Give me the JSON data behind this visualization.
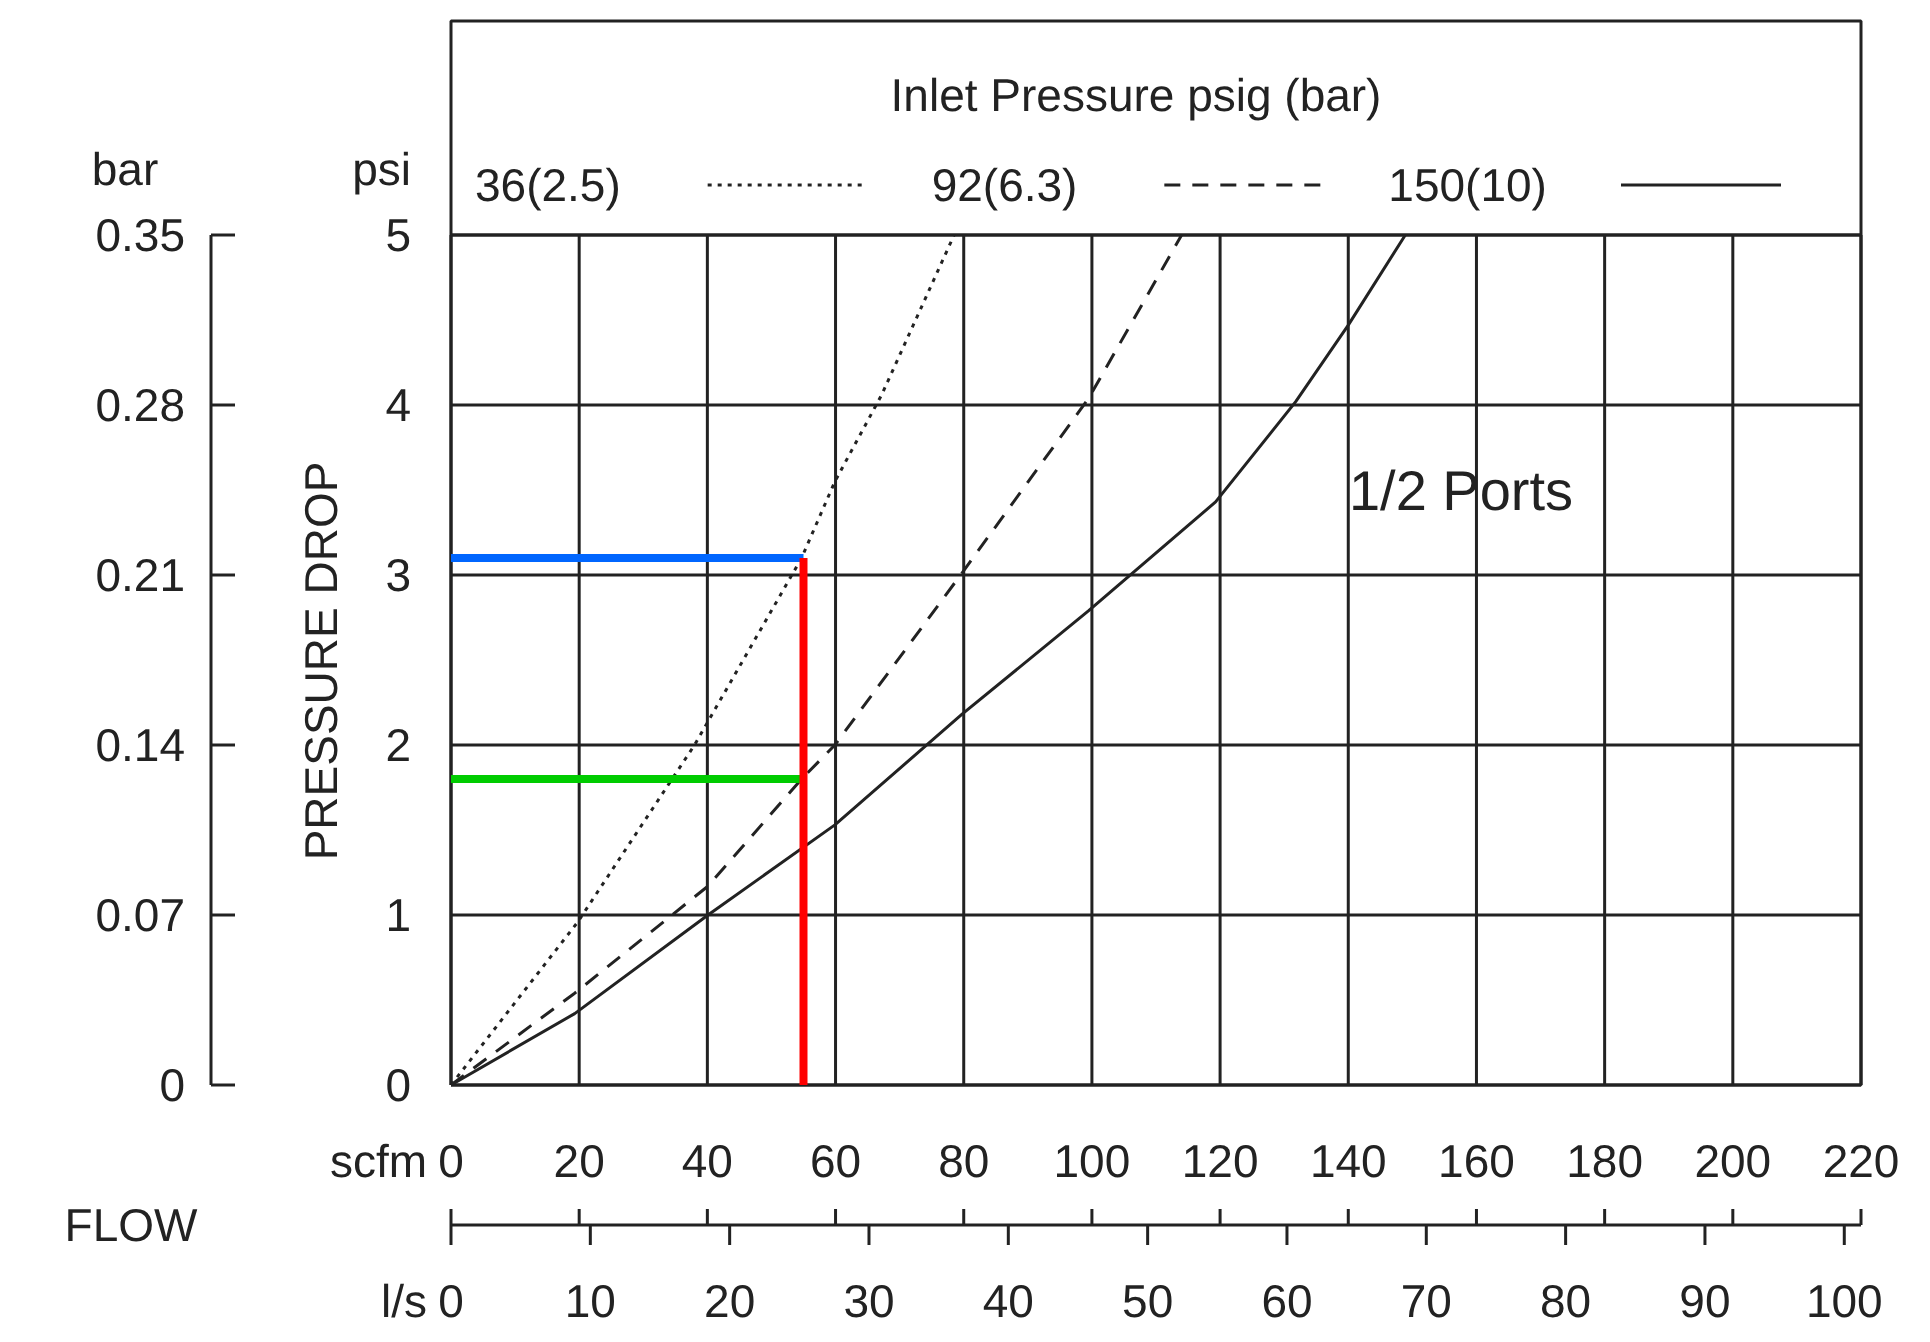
{
  "chart_data": {
    "type": "line",
    "legend_title": "Inlet Pressure psig (bar)",
    "legend": "top",
    "xlabel": "scfm",
    "x2label": "l/s",
    "ylabel": "psi",
    "y2label": "bar",
    "annotations": [
      "PRESSURE DROP",
      "FLOW",
      "1/2 Ports"
    ],
    "xlim": [
      0,
      220
    ],
    "xticks": [
      0,
      20,
      40,
      60,
      80,
      100,
      120,
      140,
      160,
      180,
      200,
      220
    ],
    "x2lim": [
      0,
      101.2
    ],
    "x2ticks": [
      0,
      10,
      20,
      30,
      40,
      50,
      60,
      70,
      80,
      90,
      100
    ],
    "ylim": [
      0,
      5
    ],
    "yticks": [
      0,
      1,
      2,
      3,
      4,
      5
    ],
    "y2lim": [
      0,
      0.35
    ],
    "y2ticks": [
      0,
      0.07,
      0.14,
      0.21,
      0.28,
      0.35
    ],
    "grid": true,
    "series": [
      {
        "name": "36(2.5)",
        "color": "#222222",
        "line_style": "dotted",
        "x": [
          0,
          19.8,
          38,
          54.7,
          59.9,
          67.2,
          78.5
        ],
        "values": [
          0,
          0.96,
          2.0,
          3.1,
          3.55,
          4.06,
          5.0
        ]
      },
      {
        "name": "92(6.3)",
        "color": "#222222",
        "line_style": "dashed",
        "x": [
          0,
          19.3,
          40.1,
          54.7,
          59.9,
          79.7,
          99.5,
          114
        ],
        "values": [
          0,
          0.54,
          1.17,
          1.8,
          2.0,
          3.01,
          4.04,
          5.0
        ]
      },
      {
        "name": "150(10)",
        "color": "#222222",
        "line_style": "solid",
        "x": [
          0,
          19.3,
          40.1,
          59.9,
          79.7,
          99.5,
          119.3,
          131.8,
          140,
          148.9
        ],
        "values": [
          0,
          0.42,
          1.0,
          1.53,
          2.18,
          2.79,
          3.43,
          4.02,
          4.47,
          5.0
        ]
      },
      {
        "color": "#0066ff",
        "line_style": "solid",
        "x": [
          0,
          55
        ],
        "values": [
          3.1,
          3.1
        ]
      },
      {
        "color": "#00cc00",
        "line_style": "solid",
        "x": [
          0,
          55
        ],
        "values": [
          1.8,
          1.8
        ]
      },
      {
        "color": "#ff0000",
        "line_style": "solid",
        "x": [
          55,
          55
        ],
        "values": [
          3.1,
          0
        ]
      }
    ]
  }
}
